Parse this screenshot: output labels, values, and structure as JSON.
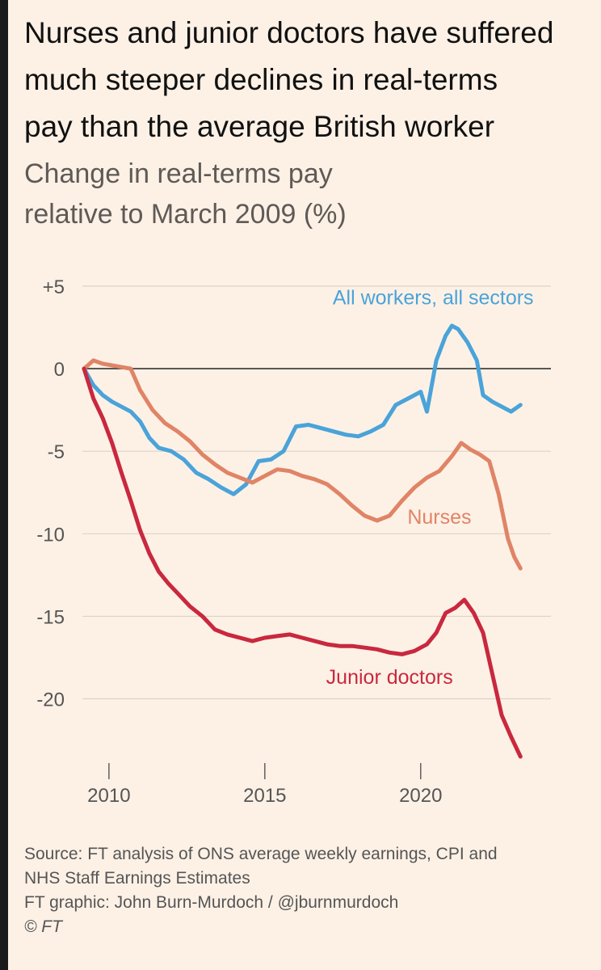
{
  "title_lines": [
    "Nurses and junior doctors have suffered",
    "much steeper declines in real-terms",
    "pay than the average British worker"
  ],
  "subtitle_lines": [
    "Change in real-terms pay",
    "relative to March 2009 (%)"
  ],
  "chart_data": {
    "type": "line",
    "title": "Nurses and junior doctors have suffered much steeper declines in real-terms pay than the average British worker",
    "subtitle": "Change in real-terms pay relative to March 2009 (%)",
    "xlabel": "",
    "ylabel": "",
    "xlim": [
      2009.2,
      2023.4
    ],
    "ylim": [
      -23.5,
      5
    ],
    "x_ticks": [
      2010,
      2015,
      2020
    ],
    "x_tick_labels": [
      "2010",
      "2015",
      "2020"
    ],
    "y_ticks": [
      5,
      0,
      -5,
      -10,
      -15,
      -20
    ],
    "y_tick_labels": [
      "+5",
      "0",
      "-5",
      "-10",
      "-15",
      "-20"
    ],
    "grid": true,
    "legend": "inline labels",
    "series": [
      {
        "name": "All workers, all sectors",
        "label": "All workers, all sectors",
        "color": "#4aa3d9",
        "x": [
          2009.2,
          2009.5,
          2009.8,
          2010.1,
          2010.4,
          2010.7,
          2011.0,
          2011.3,
          2011.6,
          2012.0,
          2012.4,
          2012.8,
          2013.2,
          2013.6,
          2014.0,
          2014.4,
          2014.8,
          2015.2,
          2015.6,
          2016.0,
          2016.4,
          2016.8,
          2017.2,
          2017.6,
          2018.0,
          2018.4,
          2018.8,
          2019.2,
          2019.6,
          2020.0,
          2020.2,
          2020.5,
          2020.8,
          2021.0,
          2021.2,
          2021.5,
          2021.8,
          2022.0,
          2022.3,
          2022.6,
          2022.9,
          2023.2
        ],
        "values": [
          0.0,
          -1.0,
          -1.6,
          -2.0,
          -2.3,
          -2.6,
          -3.2,
          -4.2,
          -4.8,
          -5.0,
          -5.5,
          -6.3,
          -6.7,
          -7.2,
          -7.6,
          -7.0,
          -5.6,
          -5.5,
          -5.0,
          -3.5,
          -3.4,
          -3.6,
          -3.8,
          -4.0,
          -4.1,
          -3.8,
          -3.4,
          -2.2,
          -1.8,
          -1.4,
          -2.6,
          0.5,
          2.0,
          2.6,
          2.4,
          1.6,
          0.5,
          -1.6,
          -2.0,
          -2.3,
          -2.6,
          -2.2
        ]
      },
      {
        "name": "Nurses",
        "label": "Nurses",
        "color": "#e08466",
        "x": [
          2009.2,
          2009.5,
          2009.8,
          2010.1,
          2010.4,
          2010.7,
          2011.0,
          2011.4,
          2011.8,
          2012.2,
          2012.6,
          2013.0,
          2013.4,
          2013.8,
          2014.2,
          2014.6,
          2015.0,
          2015.4,
          2015.8,
          2016.2,
          2016.6,
          2017.0,
          2017.4,
          2017.8,
          2018.2,
          2018.6,
          2019.0,
          2019.4,
          2019.8,
          2020.2,
          2020.6,
          2021.0,
          2021.3,
          2021.6,
          2021.9,
          2022.2,
          2022.5,
          2022.8,
          2023.0,
          2023.2
        ],
        "values": [
          0.0,
          0.5,
          0.3,
          0.2,
          0.1,
          0.0,
          -1.3,
          -2.5,
          -3.3,
          -3.8,
          -4.4,
          -5.2,
          -5.8,
          -6.3,
          -6.6,
          -6.9,
          -6.5,
          -6.1,
          -6.2,
          -6.5,
          -6.7,
          -7.0,
          -7.6,
          -8.3,
          -8.9,
          -9.2,
          -8.9,
          -8.0,
          -7.2,
          -6.6,
          -6.2,
          -5.3,
          -4.5,
          -4.9,
          -5.2,
          -5.6,
          -7.6,
          -10.3,
          -11.4,
          -12.1
        ]
      },
      {
        "name": "Junior doctors",
        "label": "Junior doctors",
        "color": "#c9283e",
        "x": [
          2009.2,
          2009.5,
          2009.8,
          2010.1,
          2010.4,
          2010.7,
          2011.0,
          2011.3,
          2011.6,
          2011.9,
          2012.2,
          2012.6,
          2013.0,
          2013.4,
          2013.8,
          2014.2,
          2014.6,
          2015.0,
          2015.4,
          2015.8,
          2016.2,
          2016.6,
          2017.0,
          2017.4,
          2017.8,
          2018.2,
          2018.6,
          2019.0,
          2019.4,
          2019.8,
          2020.2,
          2020.5,
          2020.8,
          2021.1,
          2021.4,
          2021.7,
          2022.0,
          2022.3,
          2022.6,
          2022.9,
          2023.2
        ],
        "values": [
          0.0,
          -1.8,
          -3.0,
          -4.5,
          -6.3,
          -8.0,
          -9.8,
          -11.2,
          -12.3,
          -13.0,
          -13.6,
          -14.4,
          -15.0,
          -15.8,
          -16.1,
          -16.3,
          -16.5,
          -16.3,
          -16.2,
          -16.1,
          -16.3,
          -16.5,
          -16.7,
          -16.8,
          -16.8,
          -16.9,
          -17.0,
          -17.2,
          -17.3,
          -17.1,
          -16.7,
          -16.0,
          -14.8,
          -14.5,
          -14.0,
          -14.8,
          -16.0,
          -18.5,
          -21.0,
          -22.3,
          -23.5
        ]
      }
    ]
  },
  "footer": {
    "source_line1": "Source: FT analysis of ONS average weekly earnings, CPI and",
    "source_line2": "NHS Staff Earnings Estimates",
    "credit": "FT graphic: John Burn-Murdoch / @jburnmurdoch",
    "copyright": "© FT"
  }
}
